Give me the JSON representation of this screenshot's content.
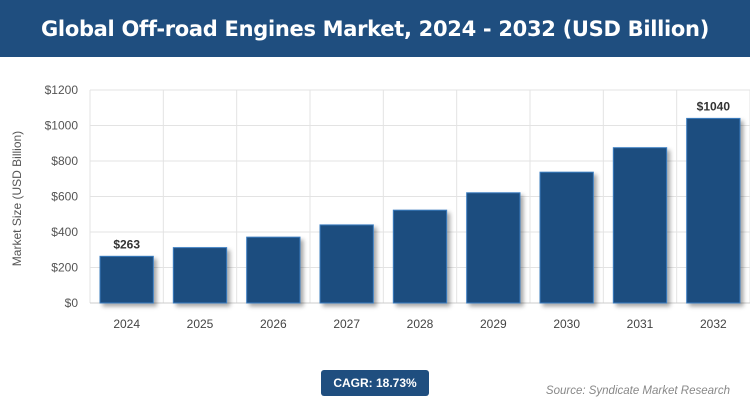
{
  "chart_data": {
    "type": "bar",
    "title": "Global Off-road Engines Market, 2024 - 2032 (USD Billion)",
    "ylabel": "Market Size (USD Billion)",
    "xlabel": "",
    "categories": [
      "2024",
      "2025",
      "2026",
      "2027",
      "2028",
      "2029",
      "2030",
      "2031",
      "2032"
    ],
    "values": [
      263,
      312,
      371,
      440,
      523,
      621,
      737,
      875,
      1040
    ],
    "data_labels": {
      "2024": "$263",
      "2032": "$1040"
    },
    "ylim": [
      0,
      1200
    ],
    "yticks": [
      0,
      200,
      400,
      600,
      800,
      1000,
      1200
    ],
    "ytick_labels": [
      "$0",
      "$200",
      "$400",
      "$600",
      "$800",
      "$1000",
      "$1200"
    ],
    "grid": true,
    "bar_color": "#1f4e7f"
  },
  "cagr": "CAGR: 18.73%",
  "source": "Source: Syndicate Market Research"
}
